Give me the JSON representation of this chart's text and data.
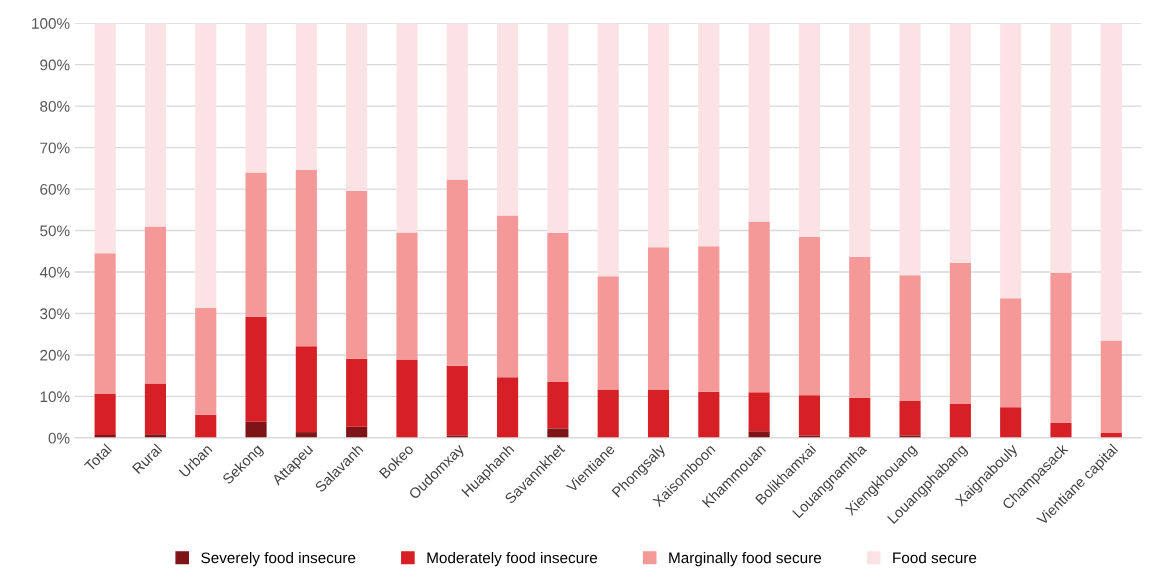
{
  "chart_data": {
    "type": "bar",
    "stacked": true,
    "categories": [
      "Total",
      "Rural",
      "Urban",
      "Sekong",
      "Attapeu",
      "Salavanh",
      "Bokeo",
      "Oudomxay",
      "Huaphanh",
      "Savannkhet",
      "Vientiane",
      "Phongsaly",
      "Xaisomboon",
      "Khammouan",
      "Bolikhamxai",
      "Louangnamtha",
      "Xiengkhouang",
      "Louangphabang",
      "Xaignabouly",
      "Champasack",
      "Vientiane capital"
    ],
    "series": [
      {
        "name": "Severely food insecure",
        "color": "#7f1418",
        "values": [
          0.7,
          0.9,
          0,
          3.9,
          1.4,
          2.7,
          0,
          0.6,
          0,
          2.3,
          0,
          0,
          0,
          1.6,
          0.6,
          0,
          0.6,
          0,
          0,
          0,
          0
        ]
      },
      {
        "name": "Moderately food insecure",
        "color": "#d71f26",
        "values": [
          9.9,
          12.2,
          5.6,
          25.3,
          20.7,
          16.4,
          18.9,
          16.8,
          14.6,
          11.2,
          11.7,
          11.7,
          11.1,
          9.4,
          9.7,
          9.7,
          8.3,
          8.2,
          7.4,
          3.6,
          1.2
        ]
      },
      {
        "name": "Marginally food secure",
        "color": "#f49898",
        "values": [
          33.9,
          37.9,
          25.7,
          34.8,
          42.5,
          40.5,
          30.6,
          44.9,
          39.0,
          35.9,
          27.3,
          34.3,
          35.1,
          41.2,
          38.2,
          34.0,
          30.3,
          34.0,
          26.3,
          36.2,
          22.3
        ]
      },
      {
        "name": "Food secure",
        "color": "#fbe3e5",
        "values": [
          55.5,
          49.0,
          68.7,
          36.0,
          35.4,
          40.4,
          50.5,
          37.7,
          46.4,
          50.6,
          61.0,
          54.0,
          53.8,
          47.8,
          51.5,
          56.3,
          60.8,
          57.8,
          66.3,
          60.2,
          76.5
        ]
      }
    ],
    "ylim": [
      0,
      100
    ],
    "yticks": [
      {
        "value": 0,
        "label": "0%"
      },
      {
        "value": 10,
        "label": "10%"
      },
      {
        "value": 20,
        "label": "20%"
      },
      {
        "value": 30,
        "label": "30%"
      },
      {
        "value": 40,
        "label": "40%"
      },
      {
        "value": 50,
        "label": "50%"
      },
      {
        "value": 60,
        "label": "60%"
      },
      {
        "value": 70,
        "label": "70%"
      },
      {
        "value": 80,
        "label": "80%"
      },
      {
        "value": 90,
        "label": "90%"
      },
      {
        "value": 100,
        "label": "100%"
      }
    ],
    "grid": "y",
    "legend": "bottom"
  }
}
